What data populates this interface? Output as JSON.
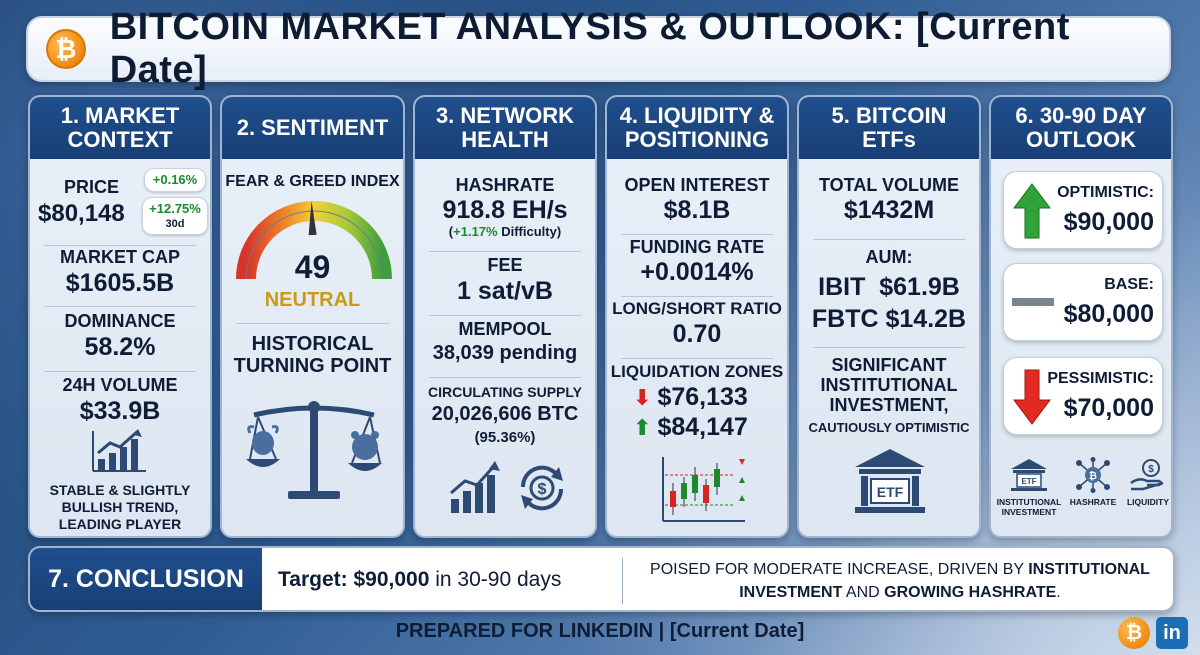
{
  "title": "BITCOIN MARKET ANALYSIS & OUTLOOK: [Current Date]",
  "panels": {
    "market_context": {
      "heading": "1. MARKET CONTEXT",
      "price_label": "PRICE",
      "price_value": "$80,148",
      "change_24h": "+0.16%",
      "change_30d": "+12.75%",
      "change_30d_period": "30d",
      "market_cap_label": "MARKET CAP",
      "market_cap_value": "$1605.5B",
      "dominance_label": "DOMINANCE",
      "dominance_value": "58.2%",
      "volume_label": "24H VOLUME",
      "volume_value": "$33.9B",
      "summary_lines": [
        "STABLE & SLIGHTLY",
        "BULLISH TREND,",
        "LEADING PLAYER"
      ]
    },
    "sentiment": {
      "heading": "2. SENTIMENT",
      "index_label": "FEAR & GREED INDEX",
      "index_value": "49",
      "index_value_num": 49,
      "index_class": "NEUTRAL",
      "note_lines": [
        "HISTORICAL",
        "TURNING POINT"
      ]
    },
    "network_health": {
      "heading": "3. NETWORK HEALTH",
      "hashrate_label": "HASHRATE",
      "hashrate_value": "918.8 EH/s",
      "difficulty_change": "+1.17%",
      "difficulty_label": "Difficulty",
      "fee_label": "FEE",
      "fee_value": "1 sat/vB",
      "mempool_label": "MEMPOOL",
      "mempool_value": "38,039 pending",
      "supply_label": "CIRCULATING SUPPLY",
      "supply_value": "20,026,606 BTC",
      "supply_pct": "(95.36%)"
    },
    "liquidity": {
      "heading": "4. LIQUIDITY & POSITIONING",
      "open_interest_label": "OPEN INTEREST",
      "open_interest_value": "$8.1B",
      "funding_label": "FUNDING RATE",
      "funding_value": "+0.0014%",
      "ls_label": "LONG/SHORT RATIO",
      "ls_value": "0.70",
      "zones_label": "LIQUIDATION ZONES",
      "zone_down": "$76,133",
      "zone_up": "$84,147"
    },
    "etfs": {
      "heading": "5. BITCOIN ETFs",
      "volume_label": "TOTAL VOLUME",
      "volume_value": "$1432M",
      "aum_label": "AUM:",
      "ibit_line": "IBIT  $61.9B",
      "fbtc_line": "FBTC $14.2B",
      "note_lines": [
        "SIGNIFICANT",
        "INSTITUTIONAL",
        "INVESTMENT,"
      ],
      "note_small": "CAUTIOUSLY OPTIMISTIC",
      "etf_icon_text": "ETF"
    },
    "outlook": {
      "heading": "6. 30-90 DAY OUTLOOK",
      "scenarios": [
        {
          "label": "OPTIMISTIC:",
          "value": "$90,000"
        },
        {
          "label": "BASE:",
          "value": "$80,000"
        },
        {
          "label": "PESSIMISTIC:",
          "value": "$70,000"
        }
      ],
      "drivers": [
        {
          "icon": "bank-icon",
          "label_lines": [
            "INSTITUTIONAL",
            "INVESTMENT"
          ],
          "icon_text": "ETF"
        },
        {
          "icon": "network-icon",
          "label_lines": [
            "HASHRATE"
          ]
        },
        {
          "icon": "hand-coin-icon",
          "label_lines": [
            "LIQUIDITY"
          ]
        }
      ]
    }
  },
  "conclusion": {
    "heading": "7. CONCLUSION",
    "target_prefix": "Target:",
    "target_value": "$90,000",
    "target_suffix": "in 30-90 days",
    "text_plain_1": "POISED FOR MODERATE INCREASE, DRIVEN BY ",
    "text_bold_1": "INSTITUTIONAL INVESTMENT",
    "text_plain_2": " AND ",
    "text_bold_2": "GROWING HASHRATE",
    "text_plain_3": "."
  },
  "footer": "PREPARED FOR LINKEDIN | [Current Date]",
  "brand": {
    "btc_symbol": "₿",
    "linkedin": "in"
  },
  "colors": {
    "header_blue": "#1d4a86",
    "gain_green": "#1a8a2c",
    "loss_red": "#d9231e",
    "neutral_gold": "#c99a12",
    "bitcoin_orange": "#f08a0f"
  }
}
